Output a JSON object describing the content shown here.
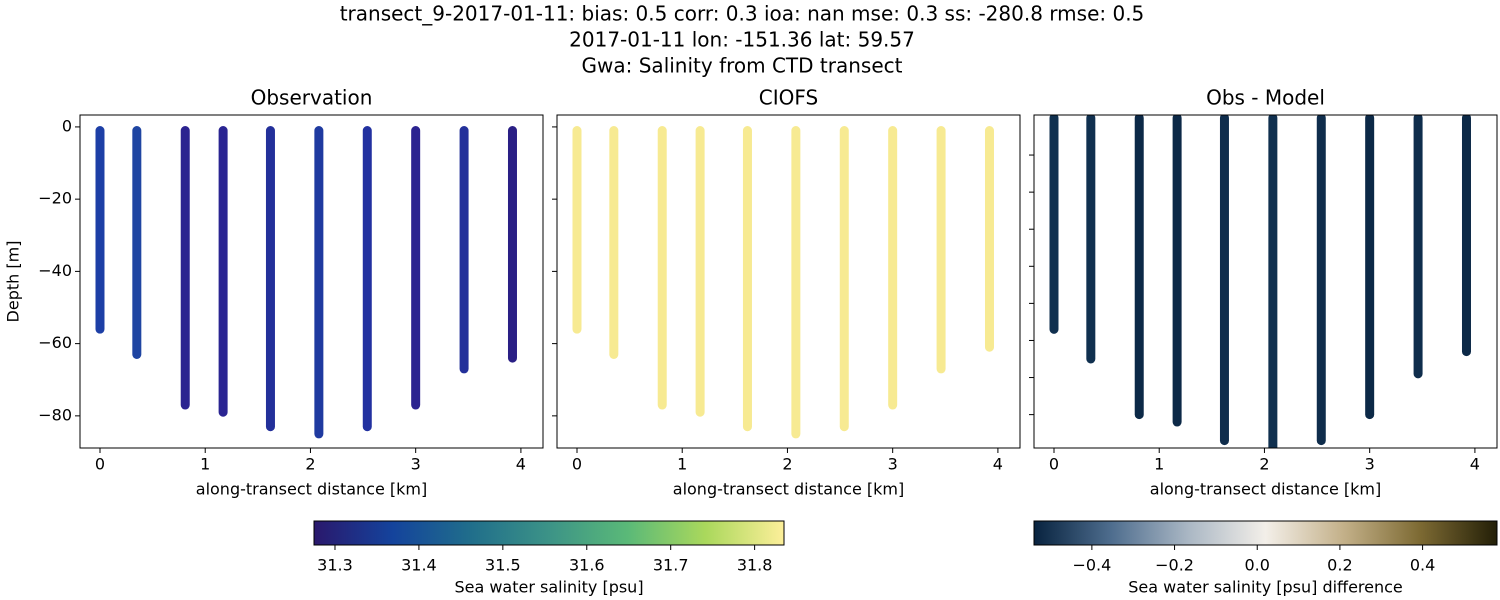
{
  "title_lines": [
    "transect_9-2017-01-11: bias: 0.5  corr: 0.3  ioa: nan  mse: 0.3  ss: -280.8  rmse: 0.5",
    "2017-01-11 lon: -151.36 lat: 59.57",
    "Gwa: Salinity from CTD transect"
  ],
  "chart_data": [
    {
      "type": "profile",
      "title": "Observation",
      "xlabel": "along-transect distance [km]",
      "ylabel": "Depth [m]",
      "xlim": [
        -0.19,
        4.21
      ],
      "xticks": [
        0,
        1,
        2,
        3,
        4
      ],
      "ylim": [
        -88.9,
        3.3
      ],
      "yticks": [
        {
          "value": 0,
          "label": "0"
        },
        {
          "value": -20,
          "label": "−20"
        },
        {
          "value": -40,
          "label": "−40"
        },
        {
          "value": -60,
          "label": "−60"
        },
        {
          "value": -80,
          "label": "−80"
        }
      ],
      "profiles": [
        {
          "x": 0,
          "top": -1,
          "bottom": -56,
          "color": "#1d3fa6"
        },
        {
          "x": 0.35,
          "top": -1,
          "bottom": -63,
          "color": "#1f45a2"
        },
        {
          "x": 0.81,
          "top": -1,
          "bottom": -77,
          "color": "#2b2390"
        },
        {
          "x": 1.17,
          "top": -1,
          "bottom": -79,
          "color": "#2a2492"
        },
        {
          "x": 1.62,
          "top": -1,
          "bottom": -83,
          "color": "#23309a"
        },
        {
          "x": 2.08,
          "top": -1,
          "bottom": -85,
          "color": "#1f3aa0"
        },
        {
          "x": 2.54,
          "top": -1,
          "bottom": -83,
          "color": "#2231a0"
        },
        {
          "x": 3.0,
          "top": -1,
          "bottom": -77,
          "color": "#2b2390"
        },
        {
          "x": 3.46,
          "top": -1,
          "bottom": -67,
          "color": "#23309a"
        },
        {
          "x": 3.92,
          "top": -1,
          "bottom": -64,
          "color": "#2a1f85"
        }
      ],
      "colorbar": {
        "label": "Sea water salinity [psu]",
        "lim": [
          31.275,
          31.835
        ],
        "ticks": [
          31.3,
          31.4,
          31.5,
          31.6,
          31.7,
          31.8
        ],
        "colors": [
          "#2a186c",
          "#14439c",
          "#206e8b",
          "#3c9387",
          "#5ab978",
          "#aad85c",
          "#fdef9a"
        ]
      }
    },
    {
      "type": "profile",
      "title": "CIOFS",
      "xlabel": "along-transect distance [km]",
      "xlim": [
        -0.19,
        4.21
      ],
      "xticks": [
        0,
        1,
        2,
        3,
        4
      ],
      "ylim": [
        -88.9,
        3.3
      ],
      "yticks": [
        0,
        -20,
        -40,
        -60,
        -80
      ],
      "profiles": [
        {
          "x": 0,
          "top": -1,
          "bottom": -56,
          "color": "#f7ea92"
        },
        {
          "x": 0.35,
          "top": -1,
          "bottom": -63,
          "color": "#f7ea92"
        },
        {
          "x": 0.81,
          "top": -1,
          "bottom": -77,
          "color": "#f7ea92"
        },
        {
          "x": 1.17,
          "top": -1,
          "bottom": -79,
          "color": "#f7ea92"
        },
        {
          "x": 1.62,
          "top": -1,
          "bottom": -83,
          "color": "#f7ea92"
        },
        {
          "x": 2.08,
          "top": -1,
          "bottom": -85,
          "color": "#f7ea92"
        },
        {
          "x": 2.54,
          "top": -1,
          "bottom": -83,
          "color": "#f7ea92"
        },
        {
          "x": 3.0,
          "top": -1,
          "bottom": -77,
          "color": "#f7ea92"
        },
        {
          "x": 3.46,
          "top": -1,
          "bottom": -67,
          "color": "#f7ea92"
        },
        {
          "x": 3.92,
          "top": -1,
          "bottom": -61,
          "color": "#f7ea92"
        }
      ]
    },
    {
      "type": "profile",
      "title": "Obs - Model",
      "xlabel": "along-transect distance [km]",
      "xlim": [
        -0.19,
        4.21
      ],
      "xticks": [
        0,
        1,
        2,
        3,
        4
      ],
      "ylim": [
        -89,
        0.8
      ],
      "yticks": [
        -10,
        -20,
        -30,
        -40,
        -50,
        -60,
        -70,
        -80
      ],
      "profiles": [
        {
          "x": 0,
          "top": 0,
          "bottom": -57,
          "color": "#10304f"
        },
        {
          "x": 0.35,
          "top": 0,
          "bottom": -65,
          "color": "#10304f"
        },
        {
          "x": 0.81,
          "top": 0,
          "bottom": -80,
          "color": "#0c2947"
        },
        {
          "x": 1.17,
          "top": 0,
          "bottom": -82,
          "color": "#0c2947"
        },
        {
          "x": 1.62,
          "top": 0,
          "bottom": -87,
          "color": "#0f2d4c"
        },
        {
          "x": 2.08,
          "top": 0,
          "bottom": -89,
          "color": "#10304f"
        },
        {
          "x": 2.54,
          "top": 0,
          "bottom": -87,
          "color": "#0f2d4c"
        },
        {
          "x": 3.0,
          "top": 0,
          "bottom": -80,
          "color": "#0c2947"
        },
        {
          "x": 3.46,
          "top": 0,
          "bottom": -69,
          "color": "#0f2d4c"
        },
        {
          "x": 3.92,
          "top": 0,
          "bottom": -63,
          "color": "#0c2947"
        }
      ],
      "colorbar": {
        "label": "Sea water salinity [psu] difference",
        "lim": [
          -0.54,
          0.58
        ],
        "ticks": [
          {
            "value": -0.4,
            "label": "−0.4"
          },
          {
            "value": -0.2,
            "label": "−0.2"
          },
          {
            "value": 0,
            "label": "0.0"
          },
          {
            "value": 0.2,
            "label": "0.2"
          },
          {
            "value": 0.4,
            "label": "0.4"
          }
        ],
        "colors": [
          "#08233f",
          "#4e6d8e",
          "#aab7c4",
          "#f3efe9",
          "#c4b18a",
          "#7d6a33",
          "#231f07"
        ]
      }
    }
  ]
}
